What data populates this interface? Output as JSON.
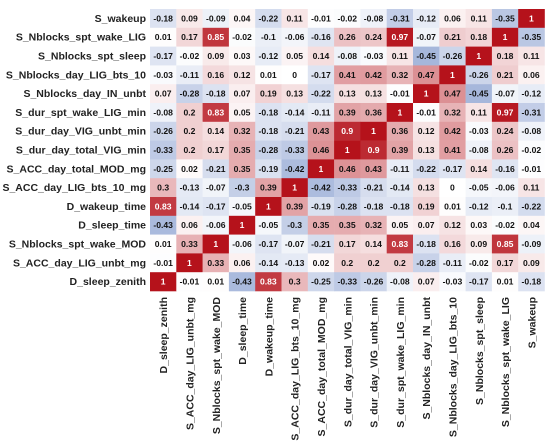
{
  "chart_data": {
    "type": "heatmap",
    "title": "",
    "xlabel": "",
    "ylabel": "",
    "value_range": [
      -1,
      1
    ],
    "colormap": {
      "negative": "#3a5fb0",
      "zero": "#ffffff",
      "positive": "#b5121b"
    },
    "row_labels": [
      "S_wakeup",
      "S_Nblocks_spt_wake_LIG",
      "S_Nblocks_spt_sleep",
      "S_Nblocks_day_LIG_bts_10",
      "S_Nblocks_day_IN_unbt",
      "S_dur_spt_wake_LIG_min",
      "S_dur_day_VIG_unbt_min",
      "S_dur_day_total_VIG_min",
      "S_ACC_day_total_MOD_mg",
      "S_ACC_day_LIG_bts_10_mg",
      "D_wakeup_time",
      "D_sleep_time",
      "S_Nblocks_spt_wake_MOD",
      "S_ACC_day_LIG_unbt_mg",
      "D_sleep_zenith"
    ],
    "col_labels": [
      "D_sleep_zenith",
      "S_ACC_day_LIG_unbt_mg",
      "S_Nblocks_spt_wake_MOD",
      "D_sleep_time",
      "D_wakeup_time",
      "S_ACC_day_LIG_bts_10_mg",
      "S_ACC_day_total_MOD_mg",
      "S_dur_day_total_VIG_min",
      "S_dur_day_VIG_unbt_min",
      "S_dur_spt_wake_LIG_min",
      "S_Nblocks_day_IN_unbt",
      "S_Nblocks_day_LIG_bts_10",
      "S_Nblocks_spt_sleep",
      "S_Nblocks_spt_wake_LIG",
      "S_wakeup"
    ],
    "values": [
      [
        -0.18,
        0.09,
        -0.09,
        0.04,
        -0.22,
        0.11,
        -0.01,
        -0.02,
        -0.08,
        -0.31,
        -0.12,
        0.06,
        0.11,
        -0.35,
        1
      ],
      [
        0.01,
        0.17,
        0.85,
        -0.02,
        -0.1,
        -0.06,
        -0.16,
        0.26,
        0.24,
        0.97,
        -0.07,
        0.21,
        0.18,
        1,
        -0.35
      ],
      [
        -0.17,
        -0.02,
        0.09,
        0.03,
        -0.12,
        0.05,
        0.14,
        -0.08,
        -0.03,
        0.11,
        -0.45,
        -0.26,
        1,
        0.18,
        0.11
      ],
      [
        -0.03,
        -0.11,
        0.16,
        0.12,
        0.01,
        0,
        -0.17,
        0.41,
        0.42,
        0.32,
        0.47,
        1,
        -0.26,
        0.21,
        0.06
      ],
      [
        0.07,
        -0.28,
        -0.18,
        0.07,
        0.19,
        0.13,
        -0.22,
        0.13,
        0.13,
        -0.01,
        1,
        0.47,
        -0.45,
        -0.07,
        -0.12
      ],
      [
        -0.08,
        0.2,
        0.83,
        0.05,
        -0.18,
        -0.14,
        -0.11,
        0.39,
        0.36,
        1,
        -0.01,
        0.32,
        0.11,
        0.97,
        -0.31
      ],
      [
        -0.26,
        0.2,
        0.14,
        0.32,
        -0.18,
        -0.21,
        0.43,
        0.9,
        1,
        0.36,
        0.12,
        0.42,
        -0.03,
        0.24,
        -0.08
      ],
      [
        -0.33,
        0.2,
        0.17,
        0.35,
        -0.28,
        -0.33,
        0.46,
        1,
        0.9,
        0.39,
        0.13,
        0.41,
        -0.08,
        0.26,
        -0.02
      ],
      [
        -0.25,
        0.02,
        -0.21,
        0.35,
        -0.19,
        -0.42,
        1,
        0.46,
        0.43,
        -0.11,
        -0.22,
        -0.17,
        0.14,
        -0.16,
        -0.01
      ],
      [
        0.3,
        -0.13,
        -0.07,
        -0.3,
        0.39,
        1,
        -0.42,
        -0.33,
        -0.21,
        -0.14,
        0.13,
        0,
        -0.05,
        -0.06,
        0.11
      ],
      [
        0.83,
        -0.14,
        -0.17,
        -0.05,
        1,
        0.39,
        -0.19,
        -0.28,
        -0.18,
        -0.18,
        0.19,
        0.01,
        -0.12,
        -0.1,
        -0.22
      ],
      [
        -0.43,
        0.06,
        -0.06,
        1,
        -0.05,
        -0.3,
        0.35,
        0.35,
        0.32,
        0.05,
        0.07,
        0.12,
        0.03,
        -0.02,
        0.04
      ],
      [
        0.01,
        0.33,
        1,
        -0.06,
        -0.17,
        -0.07,
        -0.21,
        0.17,
        0.14,
        0.83,
        -0.18,
        0.16,
        0.09,
        0.85,
        -0.09
      ],
      [
        -0.01,
        1,
        0.33,
        0.06,
        -0.14,
        -0.13,
        0.02,
        0.2,
        0.2,
        0.2,
        -0.28,
        -0.11,
        -0.02,
        0.17,
        0.09
      ],
      [
        1,
        -0.01,
        0.01,
        -0.43,
        0.83,
        0.3,
        -0.25,
        -0.33,
        -0.26,
        -0.08,
        0.07,
        -0.03,
        -0.17,
        0.01,
        -0.18
      ]
    ]
  }
}
